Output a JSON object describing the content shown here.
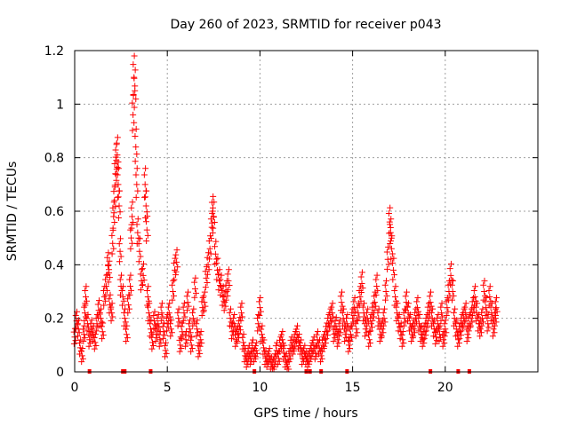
{
  "chart_data": {
    "type": "scatter",
    "title": "Day 260 of 2023, SRMTID for receiver p043",
    "xlabel": "GPS time / hours",
    "ylabel": "SRMTID / TECUs",
    "xlim": [
      0,
      25
    ],
    "ylim": [
      0,
      1.2
    ],
    "xticks": [
      0,
      5,
      10,
      15,
      20
    ],
    "xtick_labels": [
      "0",
      "5",
      "10",
      "15",
      "20"
    ],
    "yticks": [
      0,
      0.2,
      0.4,
      0.6,
      0.8,
      1.0,
      1.2
    ],
    "ytick_labels": [
      "0",
      "0.2",
      "0.4",
      "0.6",
      "0.8",
      "1",
      "1.2"
    ],
    "grid": true,
    "marker": "+",
    "series": [
      {
        "name": "SRMTID",
        "color": "#ff0000",
        "points": [
          [
            0.0,
            0.13
          ],
          [
            0.1,
            0.19
          ],
          [
            0.2,
            0.16
          ],
          [
            0.3,
            0.09
          ],
          [
            0.4,
            0.06
          ],
          [
            0.5,
            0.14
          ],
          [
            0.55,
            0.22
          ],
          [
            0.6,
            0.28
          ],
          [
            0.7,
            0.18
          ],
          [
            0.8,
            0.12
          ],
          [
            0.9,
            0.16
          ],
          [
            1.0,
            0.14
          ],
          [
            1.1,
            0.11
          ],
          [
            1.2,
            0.18
          ],
          [
            1.3,
            0.23
          ],
          [
            1.4,
            0.2
          ],
          [
            1.5,
            0.15
          ],
          [
            1.6,
            0.28
          ],
          [
            1.7,
            0.32
          ],
          [
            1.8,
            0.4
          ],
          [
            1.85,
            0.37
          ],
          [
            1.9,
            0.25
          ],
          [
            2.0,
            0.22
          ],
          [
            2.05,
            0.48
          ],
          [
            2.1,
            0.58
          ],
          [
            2.15,
            0.64
          ],
          [
            2.2,
            0.74
          ],
          [
            2.25,
            0.79
          ],
          [
            2.3,
            0.81
          ],
          [
            2.35,
            0.7
          ],
          [
            2.4,
            0.62
          ],
          [
            2.45,
            0.45
          ],
          [
            2.5,
            0.32
          ],
          [
            2.6,
            0.28
          ],
          [
            2.7,
            0.2
          ],
          [
            2.8,
            0.14
          ],
          [
            2.9,
            0.25
          ],
          [
            3.0,
            0.32
          ],
          [
            3.05,
            0.5
          ],
          [
            3.1,
            0.58
          ],
          [
            3.15,
            0.96
          ],
          [
            3.2,
            1.1
          ],
          [
            3.25,
            1.05
          ],
          [
            3.3,
            0.84
          ],
          [
            3.35,
            0.7
          ],
          [
            3.4,
            0.52
          ],
          [
            3.5,
            0.45
          ],
          [
            3.6,
            0.34
          ],
          [
            3.7,
            0.36
          ],
          [
            3.8,
            0.7
          ],
          [
            3.85,
            0.62
          ],
          [
            3.9,
            0.53
          ],
          [
            3.95,
            0.28
          ],
          [
            4.0,
            0.22
          ],
          [
            4.1,
            0.16
          ],
          [
            4.2,
            0.11
          ],
          [
            4.3,
            0.19
          ],
          [
            4.4,
            0.14
          ],
          [
            4.5,
            0.18
          ],
          [
            4.6,
            0.12
          ],
          [
            4.7,
            0.22
          ],
          [
            4.8,
            0.15
          ],
          [
            4.9,
            0.08
          ],
          [
            5.0,
            0.18
          ],
          [
            5.1,
            0.22
          ],
          [
            5.2,
            0.16
          ],
          [
            5.3,
            0.3
          ],
          [
            5.4,
            0.38
          ],
          [
            5.5,
            0.41
          ],
          [
            5.6,
            0.2
          ],
          [
            5.7,
            0.1
          ],
          [
            5.8,
            0.15
          ],
          [
            5.9,
            0.22
          ],
          [
            6.0,
            0.12
          ],
          [
            6.1,
            0.26
          ],
          [
            6.2,
            0.16
          ],
          [
            6.3,
            0.1
          ],
          [
            6.4,
            0.2
          ],
          [
            6.5,
            0.31
          ],
          [
            6.6,
            0.16
          ],
          [
            6.7,
            0.08
          ],
          [
            6.8,
            0.12
          ],
          [
            6.9,
            0.24
          ],
          [
            7.0,
            0.26
          ],
          [
            7.1,
            0.35
          ],
          [
            7.2,
            0.4
          ],
          [
            7.3,
            0.46
          ],
          [
            7.4,
            0.54
          ],
          [
            7.45,
            0.6
          ],
          [
            7.5,
            0.58
          ],
          [
            7.6,
            0.44
          ],
          [
            7.7,
            0.38
          ],
          [
            7.8,
            0.34
          ],
          [
            7.9,
            0.32
          ],
          [
            8.0,
            0.28
          ],
          [
            8.1,
            0.26
          ],
          [
            8.2,
            0.3
          ],
          [
            8.3,
            0.34
          ],
          [
            8.4,
            0.2
          ],
          [
            8.5,
            0.15
          ],
          [
            8.6,
            0.18
          ],
          [
            8.7,
            0.12
          ],
          [
            8.8,
            0.14
          ],
          [
            8.9,
            0.17
          ],
          [
            9.0,
            0.22
          ],
          [
            9.1,
            0.11
          ],
          [
            9.2,
            0.06
          ],
          [
            9.3,
            0.04
          ],
          [
            9.4,
            0.07
          ],
          [
            9.5,
            0.05
          ],
          [
            9.6,
            0.09
          ],
          [
            9.7,
            0.06
          ],
          [
            9.8,
            0.08
          ],
          [
            9.9,
            0.18
          ],
          [
            10.0,
            0.24
          ],
          [
            10.1,
            0.14
          ],
          [
            10.2,
            0.09
          ],
          [
            10.3,
            0.05
          ],
          [
            10.4,
            0.04
          ],
          [
            10.5,
            0.06
          ],
          [
            10.6,
            0.03
          ],
          [
            10.7,
            0.02
          ],
          [
            10.8,
            0.04
          ],
          [
            10.9,
            0.08
          ],
          [
            11.0,
            0.05
          ],
          [
            11.1,
            0.1
          ],
          [
            11.2,
            0.12
          ],
          [
            11.3,
            0.07
          ],
          [
            11.4,
            0.04
          ],
          [
            11.5,
            0.02
          ],
          [
            11.6,
            0.06
          ],
          [
            11.7,
            0.1
          ],
          [
            11.8,
            0.09
          ],
          [
            11.9,
            0.12
          ],
          [
            12.0,
            0.14
          ],
          [
            12.1,
            0.11
          ],
          [
            12.2,
            0.09
          ],
          [
            12.3,
            0.05
          ],
          [
            12.4,
            0.07
          ],
          [
            12.5,
            0.05
          ],
          [
            12.6,
            0.04
          ],
          [
            12.7,
            0.06
          ],
          [
            12.8,
            0.08
          ],
          [
            12.9,
            0.1
          ],
          [
            13.0,
            0.07
          ],
          [
            13.1,
            0.12
          ],
          [
            13.2,
            0.09
          ],
          [
            13.3,
            0.06
          ],
          [
            13.4,
            0.1
          ],
          [
            13.5,
            0.12
          ],
          [
            13.6,
            0.15
          ],
          [
            13.7,
            0.18
          ],
          [
            13.8,
            0.2
          ],
          [
            13.9,
            0.22
          ],
          [
            14.0,
            0.14
          ],
          [
            14.1,
            0.17
          ],
          [
            14.2,
            0.12
          ],
          [
            14.3,
            0.16
          ],
          [
            14.4,
            0.26
          ],
          [
            14.5,
            0.2
          ],
          [
            14.6,
            0.14
          ],
          [
            14.7,
            0.18
          ],
          [
            14.8,
            0.1
          ],
          [
            14.9,
            0.14
          ],
          [
            15.0,
            0.2
          ],
          [
            15.1,
            0.24
          ],
          [
            15.2,
            0.16
          ],
          [
            15.3,
            0.22
          ],
          [
            15.4,
            0.28
          ],
          [
            15.5,
            0.33
          ],
          [
            15.6,
            0.22
          ],
          [
            15.7,
            0.16
          ],
          [
            15.8,
            0.2
          ],
          [
            15.9,
            0.12
          ],
          [
            16.0,
            0.18
          ],
          [
            16.1,
            0.22
          ],
          [
            16.2,
            0.26
          ],
          [
            16.3,
            0.32
          ],
          [
            16.4,
            0.2
          ],
          [
            16.5,
            0.14
          ],
          [
            16.6,
            0.16
          ],
          [
            16.7,
            0.2
          ],
          [
            16.8,
            0.3
          ],
          [
            16.9,
            0.42
          ],
          [
            17.0,
            0.56
          ],
          [
            17.05,
            0.52
          ],
          [
            17.1,
            0.46
          ],
          [
            17.2,
            0.38
          ],
          [
            17.3,
            0.28
          ],
          [
            17.4,
            0.22
          ],
          [
            17.5,
            0.18
          ],
          [
            17.6,
            0.15
          ],
          [
            17.7,
            0.12
          ],
          [
            17.8,
            0.2
          ],
          [
            17.9,
            0.26
          ],
          [
            18.0,
            0.22
          ],
          [
            18.1,
            0.18
          ],
          [
            18.2,
            0.14
          ],
          [
            18.3,
            0.16
          ],
          [
            18.4,
            0.2
          ],
          [
            18.5,
            0.24
          ],
          [
            18.6,
            0.18
          ],
          [
            18.7,
            0.14
          ],
          [
            18.8,
            0.12
          ],
          [
            18.9,
            0.15
          ],
          [
            19.0,
            0.18
          ],
          [
            19.1,
            0.22
          ],
          [
            19.2,
            0.26
          ],
          [
            19.3,
            0.2
          ],
          [
            19.4,
            0.16
          ],
          [
            19.5,
            0.13
          ],
          [
            19.6,
            0.18
          ],
          [
            19.7,
            0.14
          ],
          [
            19.8,
            0.22
          ],
          [
            19.9,
            0.12
          ],
          [
            20.0,
            0.16
          ],
          [
            20.1,
            0.24
          ],
          [
            20.2,
            0.3
          ],
          [
            20.3,
            0.36
          ],
          [
            20.4,
            0.3
          ],
          [
            20.5,
            0.2
          ],
          [
            20.6,
            0.16
          ],
          [
            20.7,
            0.12
          ],
          [
            20.8,
            0.15
          ],
          [
            20.9,
            0.18
          ],
          [
            21.0,
            0.2
          ],
          [
            21.1,
            0.22
          ],
          [
            21.2,
            0.14
          ],
          [
            21.3,
            0.18
          ],
          [
            21.4,
            0.2
          ],
          [
            21.5,
            0.24
          ],
          [
            21.6,
            0.28
          ],
          [
            21.7,
            0.22
          ],
          [
            21.8,
            0.18
          ],
          [
            21.9,
            0.16
          ],
          [
            22.0,
            0.2
          ],
          [
            22.1,
            0.3
          ],
          [
            22.2,
            0.24
          ],
          [
            22.3,
            0.18
          ],
          [
            22.4,
            0.28
          ],
          [
            22.5,
            0.22
          ],
          [
            22.6,
            0.16
          ],
          [
            22.7,
            0.2
          ],
          [
            22.75,
            0.24
          ]
        ],
        "zero_points": [
          0.8,
          2.6,
          2.7,
          4.1,
          9.7,
          12.5,
          12.7,
          13.3,
          14.7,
          19.2,
          20.7,
          21.3
        ]
      }
    ]
  }
}
